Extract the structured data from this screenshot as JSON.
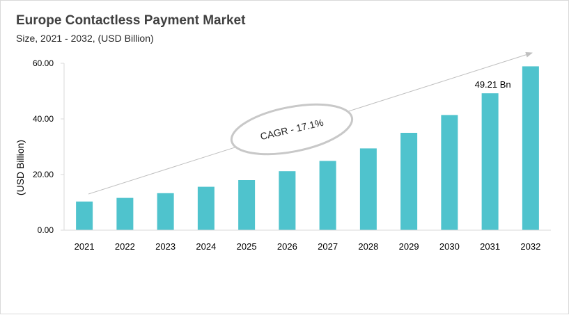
{
  "chart_data": {
    "type": "bar",
    "title": "Europe Contactless Payment Market",
    "subtitle": "Size, 2021 - 2032, (USD Billion)",
    "ylabel": "(USD Billion)",
    "xlabel": "",
    "categories": [
      "2021",
      "2022",
      "2023",
      "2024",
      "2025",
      "2026",
      "2027",
      "2028",
      "2029",
      "2030",
      "2031",
      "2032"
    ],
    "values": [
      10.3,
      11.6,
      13.3,
      15.6,
      18.0,
      21.2,
      24.9,
      29.4,
      35.0,
      41.4,
      49.21,
      58.9
    ],
    "ylim": [
      0,
      60
    ],
    "yticks": [
      "0.00",
      "20.00",
      "40.00",
      "60.00"
    ],
    "ytick_values": [
      0,
      20,
      40,
      60
    ],
    "data_labels": [
      {
        "index": 10,
        "text": "49.21 Bn"
      }
    ],
    "annotation": "CAGR - 17.1%",
    "grid": false,
    "bar_color": "#4fc3cd"
  }
}
